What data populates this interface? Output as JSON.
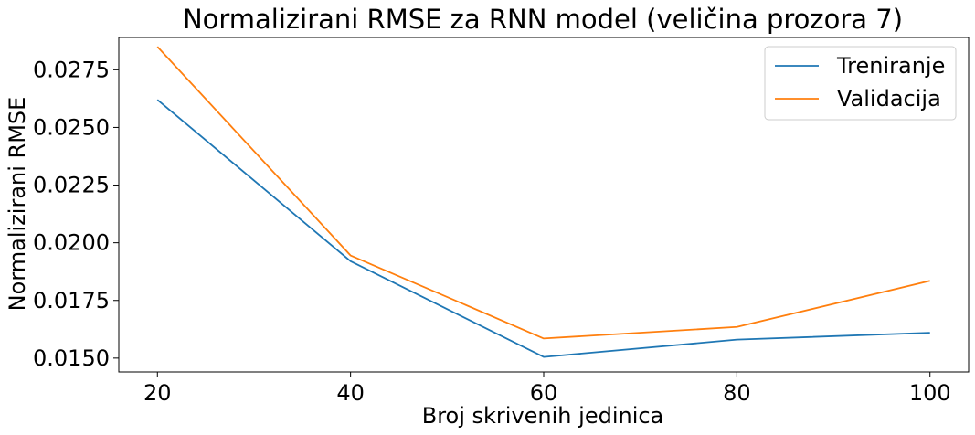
{
  "chart_data": {
    "type": "line",
    "title": "Normalizirani RMSE za RNN model (veličina prozora 7)",
    "xlabel": "Broj skrivenih jedinica",
    "ylabel": "Normalizirani RMSE",
    "x": [
      20,
      40,
      60,
      80,
      100
    ],
    "xlim": [
      16,
      104
    ],
    "ylim": [
      0.0144,
      0.0289
    ],
    "xticks": [
      "20",
      "40",
      "60",
      "80",
      "100"
    ],
    "yticks": [
      "0.0150",
      "0.0175",
      "0.0200",
      "0.0225",
      "0.0250",
      "0.0275"
    ],
    "series": [
      {
        "name": "Treniranje",
        "color": "#1f77b4",
        "values": [
          0.0262,
          0.0192,
          0.01505,
          0.0158,
          0.0161
        ]
      },
      {
        "name": "Validacija",
        "color": "#ff7f0e",
        "values": [
          0.0285,
          0.01945,
          0.01585,
          0.01635,
          0.01835
        ]
      }
    ],
    "grid": false,
    "legend_position": "top-right"
  }
}
